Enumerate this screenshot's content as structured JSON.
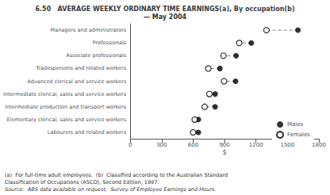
{
  "chart_data": {
    "type": "dumbbell",
    "title": "6.50   AVERAGE WEEKLY ORDINARY TIME EARNINGS(a), By occupation(b)",
    "subtitle": "— May 2004",
    "categories": [
      "Managers and administrators",
      "Professionals",
      "Associate professionals",
      "Tradespersons and related workers",
      "Advanced clerical and service workers",
      "Intermediate clerical, sales and service workers",
      "Intermediate production and transport workers",
      "Elementary clerical, sales and service workers",
      "Labourers and related workers"
    ],
    "series": [
      {
        "name": "Males",
        "color": "#000000",
        "marker": "circle",
        "values": [
          1600,
          1155,
          1010,
          855,
          1005,
          810,
          810,
          650,
          650
        ]
      },
      {
        "name": "Females",
        "color": "#000000",
        "marker": "ring",
        "values": [
          1300,
          1040,
          890,
          745,
          895,
          755,
          710,
          615,
          600
        ]
      }
    ],
    "x_label": "$",
    "xlim": [
      0,
      1800
    ],
    "xticks": [
      0,
      300,
      600,
      900,
      1200,
      1500,
      1800
    ],
    "grid": false,
    "legend": "lower right",
    "line_style": "dashed",
    "annotations": [
      "(a)  For full-time adult employees.  (b)  Classified according to the Australian Standard",
      "Classification of Occupations (ASCO), Second Edition, 1997.",
      "Source:  ABS data available on request,  Survey of Employee Earnings and Hours."
    ]
  }
}
